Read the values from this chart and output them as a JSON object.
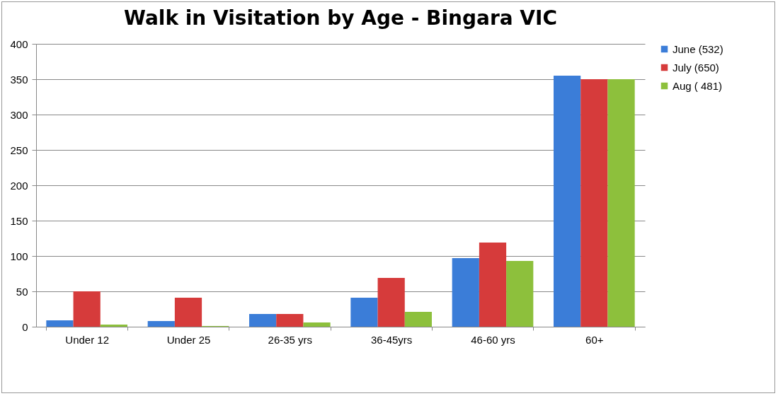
{
  "chart_data": {
    "type": "bar",
    "title": "Walk in Visitation by Age - Bingara VIC",
    "categories": [
      "Under 12",
      "Under 25",
      "26-35 yrs",
      "36-45yrs",
      "46-60 yrs",
      "60+"
    ],
    "series": [
      {
        "name": "June (532)",
        "color": "#3b7dd8",
        "values": [
          9,
          8,
          18,
          41,
          97,
          355
        ]
      },
      {
        "name": "July (650)",
        "color": "#d63b3b",
        "values": [
          50,
          41,
          18,
          69,
          119,
          350
        ]
      },
      {
        "name": "Aug ( 481)",
        "color": "#8dc03c",
        "values": [
          3,
          1,
          6,
          21,
          93,
          350
        ]
      }
    ],
    "ylim": [
      0,
      400
    ],
    "yticks": [
      0,
      50,
      100,
      150,
      200,
      250,
      300,
      350,
      400
    ],
    "grid": "y",
    "legend": "right"
  }
}
